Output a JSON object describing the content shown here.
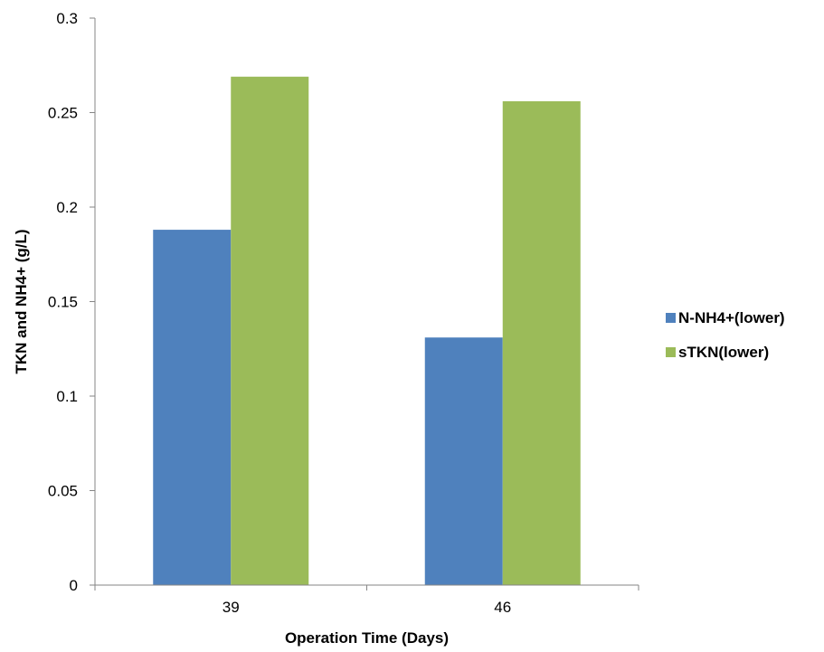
{
  "chart_data": {
    "type": "bar",
    "categories": [
      "39",
      "46"
    ],
    "series": [
      {
        "name": "N-NH4+(lower)",
        "values": [
          0.188,
          0.131
        ],
        "color": "#4F81BD"
      },
      {
        "name": "sTKN(lower)",
        "values": [
          0.269,
          0.256
        ],
        "color": "#9BBB59"
      }
    ],
    "xlabel": "Operation Time (Days)",
    "ylabel": "TKN and NH4+ (g/L)",
    "ylim": [
      0,
      0.3
    ],
    "yticks": [
      "0",
      "0.05",
      "0.1",
      "0.15",
      "0.2",
      "0.25",
      "0.3"
    ],
    "grid": false,
    "legend_position": "right"
  }
}
